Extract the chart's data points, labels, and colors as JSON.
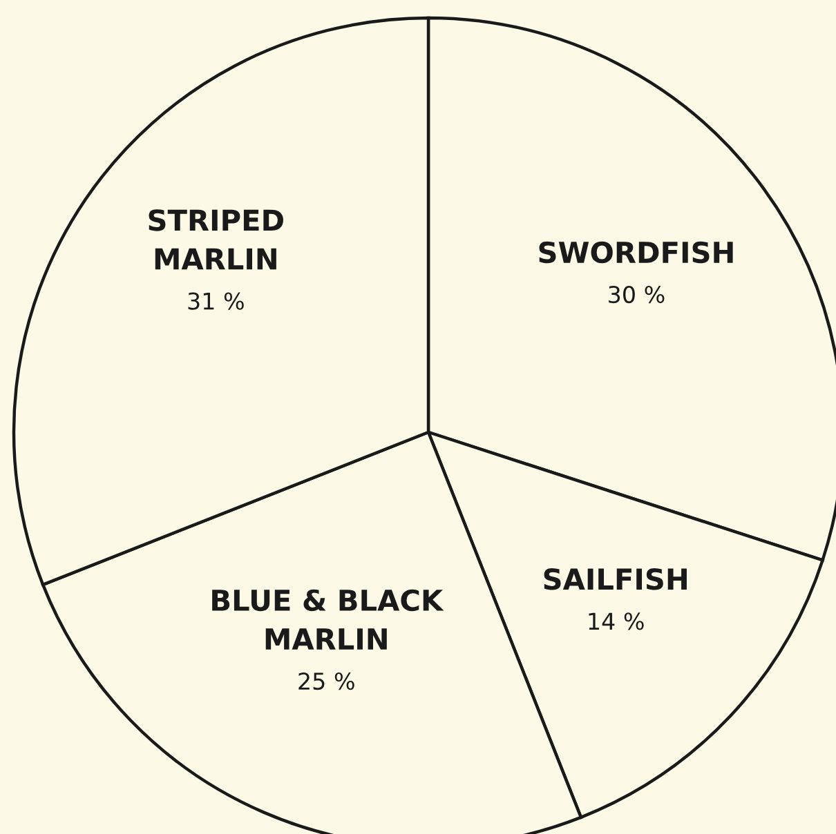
{
  "chart_data": {
    "type": "pie",
    "categories": [
      "SWORDFISH",
      "SAILFISH",
      "BLUE & BLACK\nMARLIN",
      "STRIPED\nMARLIN"
    ],
    "values": [
      30,
      14,
      25,
      31
    ],
    "value_labels": [
      "30 %",
      "14 %",
      "25 %",
      "31 %"
    ],
    "colors": [
      "#fcfae6",
      "#fcfae6",
      "#fcfae6",
      "#fcfae6"
    ]
  }
}
